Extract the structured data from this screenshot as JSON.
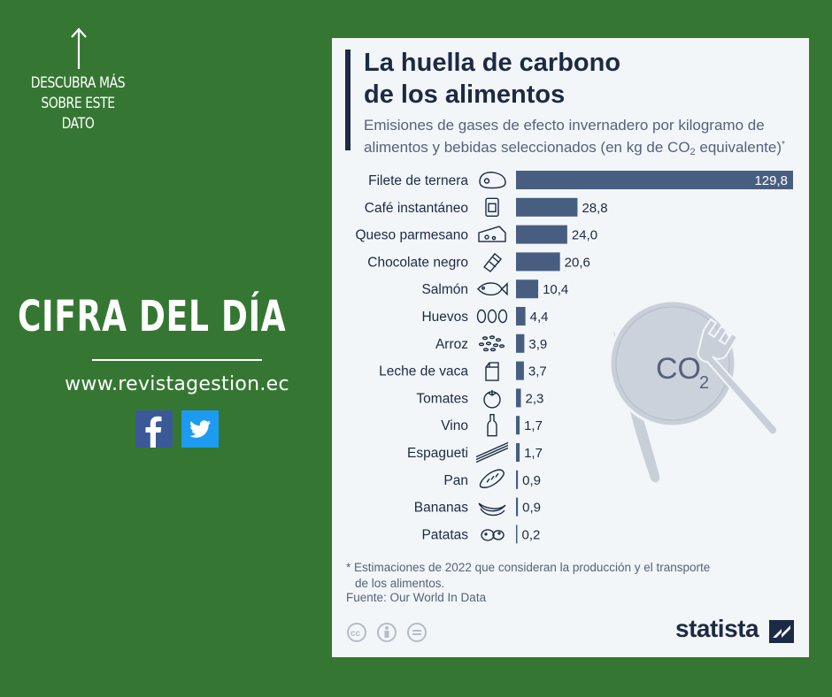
{
  "left_panel": {
    "discover_lines": [
      "DESCUBRA MÁS",
      "SOBRE ESTE",
      "DATO"
    ],
    "headline": "CIFRA DEL DÍA",
    "website": "www.revistagestion.ec",
    "social_icons": [
      "facebook-icon",
      "twitter-icon"
    ],
    "colors": {
      "background": "#357732",
      "text": "#ffffff"
    }
  },
  "card": {
    "title_lines": [
      "La huella de carbono",
      "de los alimentos"
    ],
    "subtitle_line1": "Emisiones de gases de efecto invernadero por kilogramo de",
    "subtitle_line2_pre": "alimentos y bebidas seleccionados (en kg de CO",
    "subtitle_sub": "2",
    "subtitle_line2_post": " equivalente)",
    "subtitle_sup": "*",
    "plate_text": "CO",
    "plate_sub": "2",
    "note_line1": "* Estimaciones de 2022 que consideran la producción y el transporte",
    "note_line2": "de los alimentos.",
    "source": "Fuente: Our World In Data",
    "brand": "statista",
    "colors": {
      "card": "#f3f6f9",
      "bar": "#475e80",
      "title": "#1c2a44",
      "plate": "#c9cfd8"
    }
  },
  "chart_data": {
    "type": "bar",
    "orientation": "horizontal",
    "categories": [
      "Filete de ternera",
      "Café instantáneo",
      "Queso parmesano",
      "Chocolate negro",
      "Salmón",
      "Huevos",
      "Arroz",
      "Leche de vaca",
      "Tomates",
      "Vino",
      "Espagueti",
      "Pan",
      "Bananas",
      "Patatas"
    ],
    "values": [
      129.8,
      28.8,
      24.0,
      20.6,
      10.4,
      4.4,
      3.9,
      3.7,
      2.3,
      1.7,
      1.7,
      0.9,
      0.9,
      0.2
    ],
    "value_labels": [
      "129,8",
      "28,8",
      "24,0",
      "20,6",
      "10,4",
      "4,4",
      "3,9",
      "3,7",
      "2,3",
      "1,7",
      "1,7",
      "0,9",
      "0,9",
      "0,2"
    ],
    "icons": [
      "steak-icon",
      "coffee-jar-icon",
      "cheese-icon",
      "chocolate-bar-icon",
      "fish-icon",
      "eggs-icon",
      "rice-icon",
      "milk-carton-icon",
      "tomato-icon",
      "wine-bottle-icon",
      "spaghetti-icon",
      "bread-icon",
      "bananas-icon",
      "potatoes-icon"
    ],
    "xlim": [
      0,
      129.8
    ],
    "grid": false,
    "legend": "none"
  }
}
